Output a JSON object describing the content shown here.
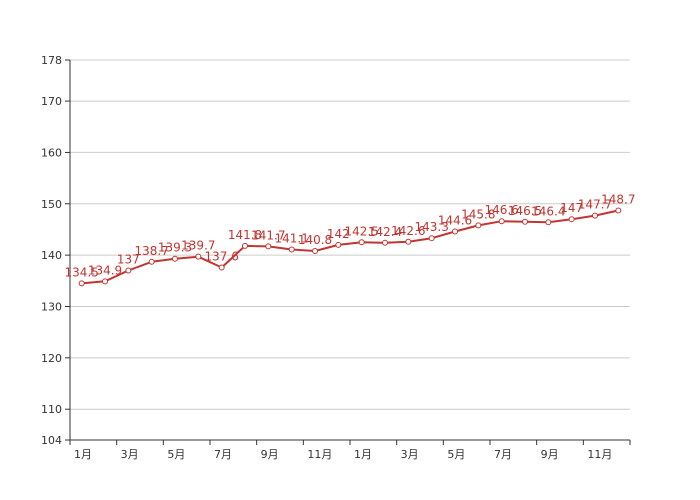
{
  "chart_data": {
    "type": "line",
    "title": "",
    "xlabel": "",
    "ylabel": "",
    "ylim": [
      104,
      178
    ],
    "yticks": [
      104,
      110,
      120,
      130,
      140,
      150,
      160,
      170,
      178
    ],
    "x_tick_labels": [
      "1月",
      "3月",
      "5月",
      "7月",
      "9月",
      "11月",
      "1月",
      "3月",
      "5月",
      "7月",
      "9月",
      "11月"
    ],
    "grid": "horizontal",
    "colors": {
      "line": "#c23531",
      "grid": "#cccccc",
      "axis": "#333333"
    },
    "categories": [
      "1月",
      "2月",
      "3月",
      "4月",
      "5月",
      "6月",
      "7月",
      "8月",
      "9月",
      "10月",
      "11月",
      "12月",
      "1月",
      "2月",
      "3月",
      "4月",
      "5月",
      "6月",
      "7月",
      "8月",
      "9月",
      "10月",
      "11月",
      "12月"
    ],
    "series": [
      {
        "values": [
          134.5,
          134.9,
          137,
          138.7,
          139.3,
          139.7,
          137.6,
          141.8,
          141.7,
          141.1,
          140.8,
          142,
          142.5,
          142.4,
          142.6,
          143.3,
          144.6,
          145.8,
          146.6,
          146.5,
          146.4,
          147,
          147.7,
          148.7
        ],
        "labels": [
          "134.5",
          "134.9",
          "137",
          "138.7",
          "139.3",
          "139.7",
          "137.6",
          "141.8",
          "141.7",
          "141.1",
          "140.8",
          "142",
          "142.5",
          "142.4",
          "142.6",
          "143.3",
          "144.6",
          "145.8",
          "146.6",
          "146.5",
          "146.4",
          "147",
          "147.7",
          "148.7"
        ]
      }
    ]
  }
}
